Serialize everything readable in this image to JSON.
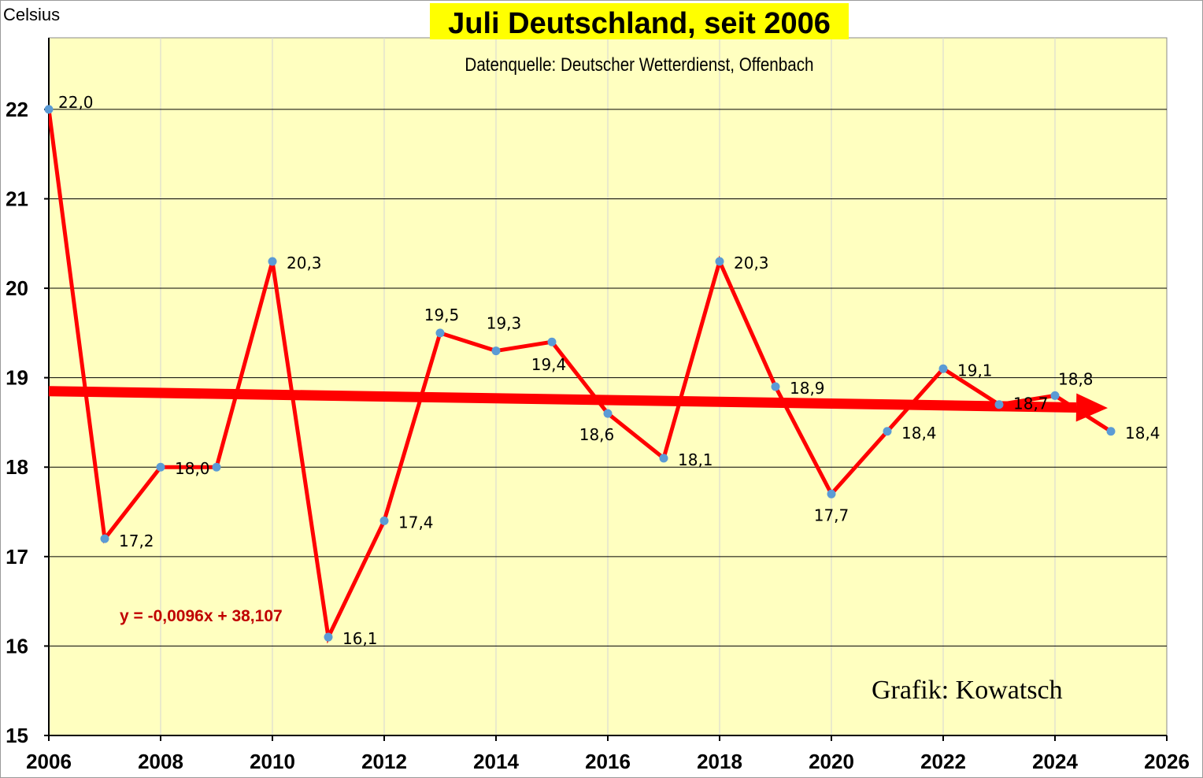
{
  "chart_data": {
    "type": "line",
    "title": "Juli Deutschland, seit 2006",
    "subtitle": "Datenquelle: Deutscher Wetterdienst, Offenbach",
    "ylabel": "Celsius",
    "xlabel": "",
    "xlim": [
      2006,
      2026
    ],
    "ylim": [
      15,
      22.8
    ],
    "x_ticks": [
      "2006",
      "2008",
      "2010",
      "2012",
      "2014",
      "2016",
      "2018",
      "2020",
      "2022",
      "2024",
      "2026"
    ],
    "y_ticks": [
      "15",
      "16",
      "17",
      "18",
      "19",
      "20",
      "21",
      "22"
    ],
    "grid": true,
    "plot_background": "#ffffc0",
    "series": [
      {
        "color": "#ff0000",
        "marker_color": "#5b9bd5",
        "x": [
          2006,
          2007,
          2008,
          2009,
          2010,
          2011,
          2012,
          2013,
          2014,
          2015,
          2016,
          2017,
          2018,
          2019,
          2020,
          2021,
          2022,
          2023,
          2024,
          2025
        ],
        "y": [
          22.0,
          17.2,
          18.0,
          18.0,
          20.3,
          16.1,
          17.4,
          19.5,
          19.3,
          19.4,
          18.6,
          18.1,
          20.3,
          18.9,
          17.7,
          18.4,
          19.1,
          18.7,
          18.8,
          18.4
        ],
        "labels": [
          "22,0",
          "17,2",
          "18,0",
          "",
          "20,3",
          "16,1",
          "17,4",
          "19,5",
          "19,3",
          "19,4",
          "18,6",
          "18,1",
          "20,3",
          "18,9",
          "17,7",
          "18,4",
          "19,1",
          "18,7",
          "18,8",
          "18,4"
        ]
      }
    ],
    "trendline": {
      "color": "#ff0000",
      "equation": "y = -0,0096x + 38,107",
      "slope": -0.0096,
      "intercept": 38.107,
      "x_start": 2006,
      "x_end": 2025
    },
    "annotation": "Grafik: Kowatsch"
  }
}
